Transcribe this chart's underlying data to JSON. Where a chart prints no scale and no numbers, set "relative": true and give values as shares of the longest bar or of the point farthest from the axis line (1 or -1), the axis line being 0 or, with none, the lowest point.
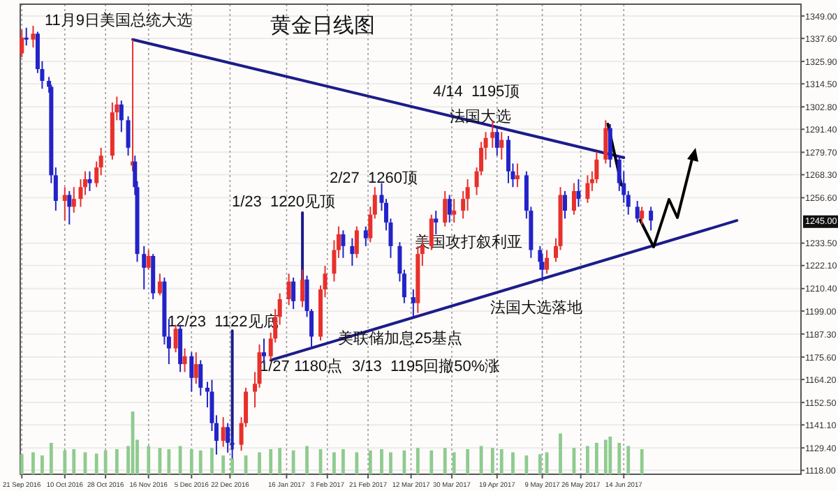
{
  "chart_data": [
    {
      "type": "candlestick",
      "title": "黄金日线图",
      "x": [
        "2016-09-21",
        "2016-09-23",
        "2016-09-26",
        "2016-09-28",
        "2016-09-30",
        "2016-10-03",
        "2016-10-04",
        "2016-10-06",
        "2016-10-10",
        "2016-10-12",
        "2016-10-14",
        "2016-10-17",
        "2016-10-19",
        "2016-10-21",
        "2016-10-24",
        "2016-10-26",
        "2016-10-31",
        "2016-11-02",
        "2016-11-04",
        "2016-11-07",
        "2016-11-09",
        "2016-11-10",
        "2016-11-11",
        "2016-11-14",
        "2016-11-16",
        "2016-11-18",
        "2016-11-21",
        "2016-11-23",
        "2016-11-25",
        "2016-11-28",
        "2016-11-30",
        "2016-12-02",
        "2016-12-05",
        "2016-12-07",
        "2016-12-09",
        "2016-12-12",
        "2016-12-14",
        "2016-12-16",
        "2016-12-19",
        "2016-12-21",
        "2016-12-23",
        "2016-12-27",
        "2016-12-29",
        "2017-01-02",
        "2017-01-04",
        "2017-01-06",
        "2017-01-09",
        "2017-01-11",
        "2017-01-13",
        "2017-01-17",
        "2017-01-19",
        "2017-01-23",
        "2017-01-25",
        "2017-01-27",
        "2017-01-31",
        "2017-02-02",
        "2017-02-06",
        "2017-02-08",
        "2017-02-10",
        "2017-02-14",
        "2017-02-16",
        "2017-02-20",
        "2017-02-22",
        "2017-02-24",
        "2017-02-27",
        "2017-03-01",
        "2017-03-03",
        "2017-03-07",
        "2017-03-09",
        "2017-03-13",
        "2017-03-15",
        "2017-03-17",
        "2017-03-21",
        "2017-03-23",
        "2017-03-27",
        "2017-03-29",
        "2017-03-31",
        "2017-04-04",
        "2017-04-06",
        "2017-04-10",
        "2017-04-12",
        "2017-04-14",
        "2017-04-17",
        "2017-04-19",
        "2017-04-21",
        "2017-04-24",
        "2017-04-26",
        "2017-04-28",
        "2017-05-02",
        "2017-05-04",
        "2017-05-08",
        "2017-05-09",
        "2017-05-11",
        "2017-05-15",
        "2017-05-17",
        "2017-05-19",
        "2017-05-23",
        "2017-05-25",
        "2017-05-29",
        "2017-05-31",
        "2017-06-02",
        "2017-06-06",
        "2017-06-08",
        "2017-06-12",
        "2017-06-14",
        "2017-06-16",
        "2017-06-20",
        "2017-06-22",
        "2017-06-26"
      ],
      "ohlc": [
        [
          1330,
          1342,
          1328,
          1338
        ],
        [
          1338,
          1343,
          1334,
          1337
        ],
        [
          1337,
          1344,
          1333,
          1340
        ],
        [
          1340,
          1341,
          1320,
          1322
        ],
        [
          1322,
          1326,
          1312,
          1316
        ],
        [
          1316,
          1318,
          1310,
          1313
        ],
        [
          1313,
          1314,
          1264,
          1268
        ],
        [
          1268,
          1272,
          1250,
          1255
        ],
        [
          1255,
          1262,
          1245,
          1258
        ],
        [
          1258,
          1260,
          1243,
          1252
        ],
        [
          1252,
          1262,
          1249,
          1256
        ],
        [
          1256,
          1266,
          1252,
          1262
        ],
        [
          1262,
          1270,
          1258,
          1266
        ],
        [
          1266,
          1270,
          1260,
          1264
        ],
        [
          1264,
          1275,
          1262,
          1272
        ],
        [
          1272,
          1282,
          1268,
          1278
        ],
        [
          1278,
          1305,
          1276,
          1300
        ],
        [
          1300,
          1308,
          1296,
          1304
        ],
        [
          1304,
          1306,
          1290,
          1296
        ],
        [
          1296,
          1298,
          1278,
          1282
        ],
        [
          1273,
          1337,
          1270,
          1275
        ],
        [
          1275,
          1278,
          1258,
          1262
        ],
        [
          1262,
          1265,
          1224,
          1228
        ],
        [
          1228,
          1232,
          1210,
          1221
        ],
        [
          1221,
          1230,
          1220,
          1227
        ],
        [
          1227,
          1228,
          1205,
          1208
        ],
        [
          1208,
          1218,
          1207,
          1214
        ],
        [
          1214,
          1216,
          1182,
          1186
        ],
        [
          1186,
          1195,
          1172,
          1180
        ],
        [
          1180,
          1192,
          1178,
          1190
        ],
        [
          1190,
          1192,
          1168,
          1172
        ],
        [
          1172,
          1180,
          1168,
          1176
        ],
        [
          1176,
          1178,
          1158,
          1165
        ],
        [
          1165,
          1178,
          1162,
          1172
        ],
        [
          1172,
          1174,
          1156,
          1160
        ],
        [
          1160,
          1163,
          1150,
          1158
        ],
        [
          1158,
          1164,
          1138,
          1142
        ],
        [
          1142,
          1146,
          1126,
          1133
        ],
        [
          1133,
          1145,
          1130,
          1140
        ],
        [
          1140,
          1142,
          1127,
          1132
        ],
        [
          1132,
          1136,
          1122,
          1131
        ],
        [
          1131,
          1145,
          1128,
          1142
        ],
        [
          1142,
          1160,
          1140,
          1158
        ],
        [
          1158,
          1168,
          1150,
          1162
        ],
        [
          1162,
          1182,
          1160,
          1178
        ],
        [
          1178,
          1185,
          1172,
          1176
        ],
        [
          1176,
          1188,
          1174,
          1185
        ],
        [
          1185,
          1200,
          1183,
          1196
        ],
        [
          1196,
          1208,
          1192,
          1205
        ],
        [
          1205,
          1218,
          1202,
          1214
        ],
        [
          1214,
          1216,
          1200,
          1204
        ],
        [
          1204,
          1220,
          1201,
          1215
        ],
        [
          1215,
          1217,
          1196,
          1199
        ],
        [
          1199,
          1200,
          1180,
          1186
        ],
        [
          1186,
          1212,
          1184,
          1210
        ],
        [
          1210,
          1222,
          1206,
          1218
        ],
        [
          1218,
          1235,
          1214,
          1230
        ],
        [
          1230,
          1242,
          1226,
          1238
        ],
        [
          1238,
          1240,
          1226,
          1232
        ],
        [
          1232,
          1236,
          1222,
          1228
        ],
        [
          1228,
          1242,
          1226,
          1240
        ],
        [
          1240,
          1242,
          1232,
          1236
        ],
        [
          1236,
          1252,
          1234,
          1248
        ],
        [
          1248,
          1262,
          1246,
          1258
        ],
        [
          1258,
          1264,
          1250,
          1254
        ],
        [
          1254,
          1256,
          1240,
          1244
        ],
        [
          1244,
          1246,
          1226,
          1232
        ],
        [
          1232,
          1234,
          1214,
          1218
        ],
        [
          1218,
          1220,
          1203,
          1206
        ],
        [
          1206,
          1210,
          1196,
          1203
        ],
        [
          1203,
          1232,
          1198,
          1228
        ],
        [
          1228,
          1236,
          1222,
          1232
        ],
        [
          1232,
          1248,
          1230,
          1246
        ],
        [
          1246,
          1250,
          1238,
          1244
        ],
        [
          1244,
          1260,
          1242,
          1256
        ],
        [
          1256,
          1258,
          1244,
          1248
        ],
        [
          1248,
          1256,
          1244,
          1250
        ],
        [
          1250,
          1260,
          1246,
          1256
        ],
        [
          1256,
          1266,
          1250,
          1262
        ],
        [
          1262,
          1272,
          1258,
          1270
        ],
        [
          1270,
          1285,
          1268,
          1282
        ],
        [
          1282,
          1290,
          1276,
          1287
        ],
        [
          1287,
          1296,
          1282,
          1290
        ],
        [
          1290,
          1292,
          1278,
          1282
        ],
        [
          1282,
          1290,
          1276,
          1286
        ],
        [
          1286,
          1288,
          1264,
          1270
        ],
        [
          1270,
          1274,
          1262,
          1266
        ],
        [
          1266,
          1274,
          1262,
          1268
        ],
        [
          1268,
          1270,
          1246,
          1250
        ],
        [
          1250,
          1252,
          1226,
          1230
        ],
        [
          1230,
          1232,
          1220,
          1224
        ],
        [
          1224,
          1228,
          1214,
          1220
        ],
        [
          1220,
          1230,
          1218,
          1226
        ],
        [
          1226,
          1236,
          1224,
          1232
        ],
        [
          1232,
          1262,
          1230,
          1258
        ],
        [
          1258,
          1260,
          1246,
          1250
        ],
        [
          1250,
          1264,
          1248,
          1260
        ],
        [
          1260,
          1266,
          1252,
          1256
        ],
        [
          1256,
          1268,
          1254,
          1264
        ],
        [
          1264,
          1270,
          1260,
          1266
        ],
        [
          1266,
          1280,
          1264,
          1276
        ],
        [
          1276,
          1296,
          1274,
          1292
        ],
        [
          1292,
          1294,
          1272,
          1276
        ],
        [
          1276,
          1278,
          1260,
          1264
        ],
        [
          1264,
          1270,
          1254,
          1258
        ],
        [
          1258,
          1260,
          1248,
          1252
        ],
        [
          1252,
          1255,
          1244,
          1246
        ],
        [
          1246,
          1252,
          1243,
          1250
        ],
        [
          1250,
          1252,
          1240,
          1245
        ]
      ],
      "colors": [
        "#e8302c",
        "#2323c8",
        "#e8302c",
        "#2323c8",
        "#2323c8",
        "#2323c8",
        "#2323c8",
        "#2323c8",
        "#e8302c",
        "#2323c8",
        "#e8302c",
        "#e8302c",
        "#e8302c",
        "#2323c8",
        "#e8302c",
        "#e8302c",
        "#e8302c",
        "#e8302c",
        "#2323c8",
        "#2323c8",
        "#e8302c",
        "#2323c8",
        "#2323c8",
        "#2323c8",
        "#e8302c",
        "#2323c8",
        "#e8302c",
        "#2323c8",
        "#2323c8",
        "#e8302c",
        "#2323c8",
        "#e8302c",
        "#2323c8",
        "#e8302c",
        "#2323c8",
        "#2323c8",
        "#2323c8",
        "#2323c8",
        "#e8302c",
        "#2323c8",
        "#2323c8",
        "#e8302c",
        "#e8302c",
        "#e8302c",
        "#e8302c",
        "#2323c8",
        "#e8302c",
        "#e8302c",
        "#e8302c",
        "#e8302c",
        "#2323c8",
        "#e8302c",
        "#2323c8",
        "#2323c8",
        "#e8302c",
        "#e8302c",
        "#e8302c",
        "#e8302c",
        "#2323c8",
        "#2323c8",
        "#e8302c",
        "#2323c8",
        "#e8302c",
        "#e8302c",
        "#2323c8",
        "#2323c8",
        "#2323c8",
        "#2323c8",
        "#2323c8",
        "#2323c8",
        "#e8302c",
        "#e8302c",
        "#e8302c",
        "#2323c8",
        "#e8302c",
        "#2323c8",
        "#e8302c",
        "#e8302c",
        "#e8302c",
        "#e8302c",
        "#e8302c",
        "#e8302c",
        "#e8302c",
        "#2323c8",
        "#e8302c",
        "#2323c8",
        "#2323c8",
        "#e8302c",
        "#2323c8",
        "#2323c8",
        "#2323c8",
        "#2323c8",
        "#e8302c",
        "#e8302c",
        "#e8302c",
        "#2323c8",
        "#e8302c",
        "#2323c8",
        "#e8302c",
        "#e8302c",
        "#e8302c",
        "#e8302c",
        "#2323c8",
        "#2323c8",
        "#2323c8",
        "#2323c8",
        "#2323c8",
        "#e8302c",
        "#2323c8"
      ],
      "series": [
        {
          "type": "line",
          "color": "#1c1c8a",
          "x": [
            "2016-11-09",
            "2017-06-14"
          ],
          "values": [
            1337,
            1277
          ]
        },
        {
          "type": "line",
          "color": "#1c1c8a",
          "x": [
            "2017-01-09",
            "2017-08-03"
          ],
          "values": [
            1174,
            1245
          ]
        },
        {
          "type": "line",
          "color": "#1c1c8a",
          "x": [
            "2016-12-23",
            "2016-12-23"
          ],
          "values": [
            1189,
            1129
          ]
        },
        {
          "type": "line",
          "color": "#1c1c8a",
          "x": [
            "2017-01-23",
            "2017-01-23"
          ],
          "values": [
            1249,
            1207
          ]
        },
        {
          "type": "line",
          "color": "#000000",
          "x": [
            "2017-06-07",
            "2017-06-13"
          ],
          "values": [
            1294,
            1263
          ]
        }
      ],
      "xlim": [
        "2016-09-20",
        "2017-08-31"
      ],
      "xticks": [
        {
          "value": "2016-09-21",
          "label": "21 Sep 2016"
        },
        {
          "value": "2016-10-10",
          "label": "10 Oct 2016"
        },
        {
          "value": "2016-10-28",
          "label": "28 Oct 2016"
        },
        {
          "value": "2016-11-16",
          "label": "16 Nov 2016"
        },
        {
          "value": "2016-12-05",
          "label": "5 Dec 2016"
        },
        {
          "value": "2016-12-22",
          "label": "22 Dec 2016"
        },
        {
          "value": "2017-01-16",
          "label": "16 Jan 2017"
        },
        {
          "value": "2017-02-03",
          "label": "3 Feb 2017"
        },
        {
          "value": "2017-02-21",
          "label": "21 Feb 2017"
        },
        {
          "value": "2017-03-12",
          "label": "12 Mar 2017"
        },
        {
          "value": "2017-03-30",
          "label": "30 Mar 2017"
        },
        {
          "value": "2017-04-19",
          "label": "19 Apr 2017"
        },
        {
          "value": "2017-05-09",
          "label": "9 May 2017"
        },
        {
          "value": "2017-05-26",
          "label": "26 May 2017"
        },
        {
          "value": "2017-06-14",
          "label": "14 Jun 2017"
        }
      ],
      "ylim": [
        1116,
        1355
      ],
      "yticks": [
        {
          "value": 1349,
          "label": "1349.00"
        },
        {
          "value": 1337.6,
          "label": "1337.60"
        },
        {
          "value": 1325.9,
          "label": "1325.90"
        },
        {
          "value": 1314.5,
          "label": "1314.50"
        },
        {
          "value": 1302.8,
          "label": "1302.80"
        },
        {
          "value": 1291.4,
          "label": "1291.40"
        },
        {
          "value": 1279.7,
          "label": "1279.70"
        },
        {
          "value": 1268.3,
          "label": "1268.30"
        },
        {
          "value": 1256.6,
          "label": "1256.60"
        },
        {
          "value": 1233.5,
          "label": "1233.50"
        },
        {
          "value": 1222.1,
          "label": "1222.10"
        },
        {
          "value": 1210.4,
          "label": "1210.40"
        },
        {
          "value": 1199,
          "label": "1199.00"
        },
        {
          "value": 1187.3,
          "label": "1187.30"
        },
        {
          "value": 1175.6,
          "label": "1175.60"
        },
        {
          "value": 1164.2,
          "label": "1164.20"
        },
        {
          "value": 1152.5,
          "label": "1152.50"
        },
        {
          "value": 1141.1,
          "label": "1141.10"
        },
        {
          "value": 1129.4,
          "label": "1129.40"
        },
        {
          "value": 1118,
          "label": "1118.00"
        }
      ],
      "grid": true,
      "annotations": [
        "11月9日美国总统大选",
        "4/14  1195顶",
        "法国大选",
        "2/27  1260顶",
        "1/23  1220见顶",
        "美国攻打叙利亚",
        "法国大选落地",
        "12/23  1122见底",
        "美联储加息25基点",
        "1/27 1180点",
        "3/13  1195回撤50%涨",
        {
          "text": "1245.00",
          "y": 1245
        }
      ]
    },
    {
      "type": "bar",
      "relative": true,
      "color": "#8fcb8f",
      "xlim": [
        "2016-09-20",
        "2017-08-31"
      ],
      "x": [
        "2016-09-21",
        "2016-09-26",
        "2016-09-30",
        "2016-10-04",
        "2016-10-10",
        "2016-10-14",
        "2016-10-19",
        "2016-10-24",
        "2016-10-28",
        "2016-11-02",
        "2016-11-07",
        "2016-11-09",
        "2016-11-11",
        "2016-11-16",
        "2016-11-21",
        "2016-11-25",
        "2016-11-30",
        "2016-12-05",
        "2016-12-09",
        "2016-12-14",
        "2016-12-19",
        "2016-12-23",
        "2016-12-29",
        "2017-01-04",
        "2017-01-09",
        "2017-01-13",
        "2017-01-19",
        "2017-01-25",
        "2017-01-31",
        "2017-02-06",
        "2017-02-10",
        "2017-02-16",
        "2017-02-22",
        "2017-02-27",
        "2017-03-03",
        "2017-03-09",
        "2017-03-15",
        "2017-03-21",
        "2017-03-27",
        "2017-03-31",
        "2017-04-06",
        "2017-04-12",
        "2017-04-17",
        "2017-04-21",
        "2017-04-26",
        "2017-05-02",
        "2017-05-08",
        "2017-05-11",
        "2017-05-17",
        "2017-05-23",
        "2017-05-29",
        "2017-06-02",
        "2017-06-06",
        "2017-06-08",
        "2017-06-12",
        "2017-06-16",
        "2017-06-22"
      ],
      "values": [
        0.32,
        0.35,
        0.3,
        0.5,
        0.38,
        0.4,
        0.35,
        0.33,
        0.38,
        0.4,
        0.45,
        1,
        0.55,
        0.45,
        0.42,
        0.4,
        0.45,
        0.4,
        0.38,
        0.42,
        0.3,
        0.25,
        0.3,
        0.35,
        0.4,
        0.42,
        0.38,
        0.45,
        0.4,
        0.35,
        0.4,
        0.35,
        0.38,
        0.4,
        0.35,
        0.38,
        0.42,
        0.38,
        0.42,
        0.35,
        0.4,
        0.45,
        0.42,
        0.4,
        0.35,
        0.3,
        0.32,
        0.35,
        0.65,
        0.42,
        0.45,
        0.5,
        0.55,
        0.6,
        0.5,
        0.45,
        0.4
      ]
    }
  ]
}
